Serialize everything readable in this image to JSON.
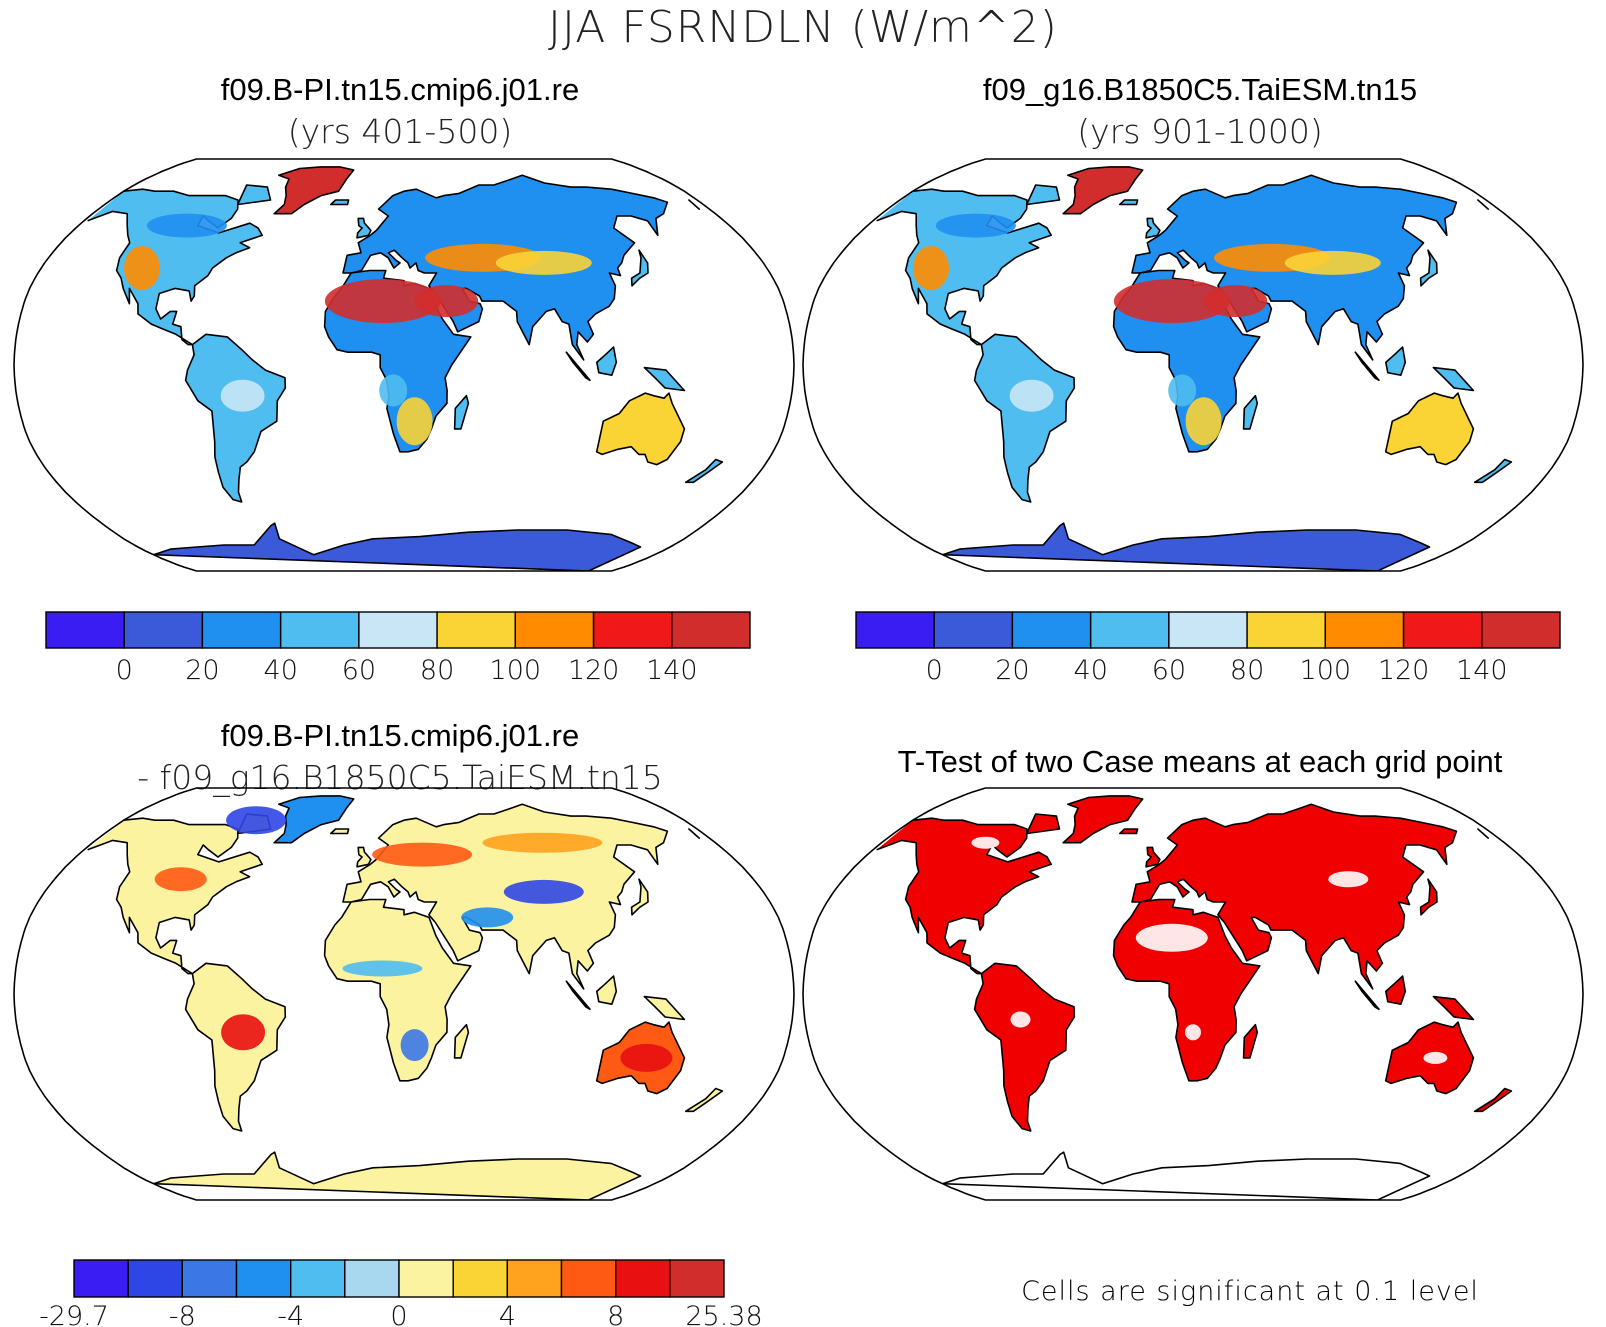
{
  "title": "JJA FSRNDLN (W/m^2)",
  "colors": {
    "levels": [
      "#3a1df2",
      "#3a5ad9",
      "#1f8ff0",
      "#4fbdf0",
      "#c8e6f5",
      "#fad335",
      "#ff8c00",
      "#f01818",
      "#d22d2d"
    ],
    "diff": [
      "#3a1df2",
      "#2f46e6",
      "#3b78e6",
      "#1f8ff0",
      "#4fbdf0",
      "#a8d8f0",
      "#fbf3a0",
      "#fad335",
      "#ffa21e",
      "#ff5a14",
      "#e81010",
      "#d22d2d"
    ],
    "significant": "#f00000"
  },
  "panels": {
    "top_left": {
      "title": "f09.B-PI.tn15.cmip6.j01.re",
      "subtitle": "(yrs 401-500)",
      "colorbar_ticks": [
        "0",
        "20",
        "40",
        "60",
        "80",
        "100",
        "120",
        "140"
      ]
    },
    "top_right": {
      "title": "f09_g16.B1850C5.TaiESM.tn15",
      "subtitle": "(yrs 901-1000)",
      "colorbar_ticks": [
        "0",
        "20",
        "40",
        "60",
        "80",
        "100",
        "120",
        "140"
      ]
    },
    "bottom_left": {
      "title": "f09.B-PI.tn15.cmip6.j01.re",
      "subtitle": "- f09_g16.B1850C5.TaiESM.tn15",
      "colorbar_ticks": [
        "-29.7",
        "-8",
        "-4",
        "0",
        "4",
        "8",
        "25.38"
      ]
    },
    "bottom_right": {
      "title": "T-Test of two Case means at each grid point",
      "note": "Cells are significant at 0.1 level"
    }
  }
}
